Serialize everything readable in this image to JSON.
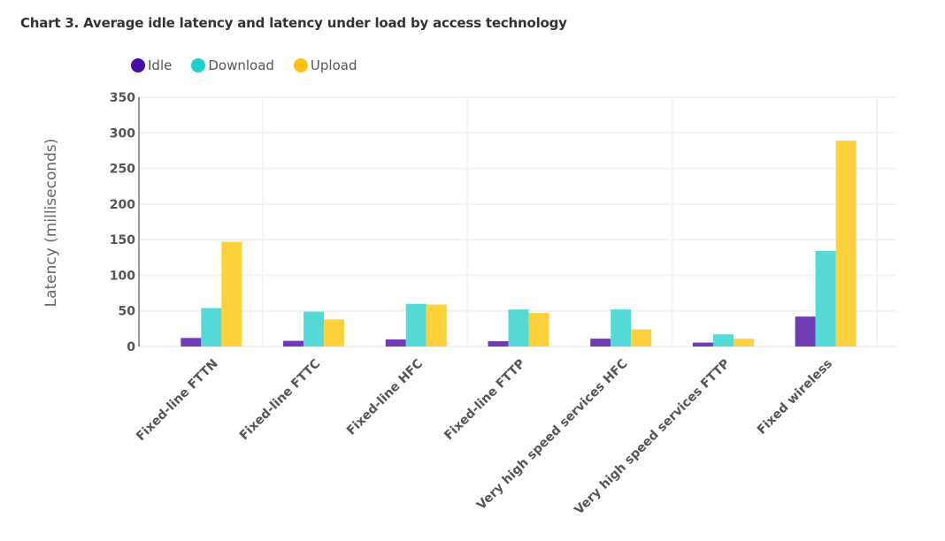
{
  "chart_data": {
    "type": "bar",
    "title": "Chart 3. Average idle latency and latency under load by access technology",
    "xlabel": "",
    "ylabel": "Latency (milliseconds)",
    "ylim": [
      0,
      350
    ],
    "yticks": [
      0,
      50,
      100,
      150,
      200,
      250,
      300,
      350
    ],
    "grid": true,
    "legend_position": "top-left",
    "categories": [
      "Fixed-line FTTN",
      "Fixed-line FTTC",
      "Fixed-line HFC",
      "Fixed-line FTTP",
      "Very high speed services HFC",
      "Very high speed services FTTP",
      "Fixed wireless"
    ],
    "series": [
      {
        "name": "Idle",
        "color": "#6f3cb5",
        "legend_color": "#4a0ca8",
        "values": [
          12,
          8,
          10,
          7.5,
          11,
          5.5,
          42
        ]
      },
      {
        "name": "Download",
        "color": "#55d9d6",
        "legend_color": "#1fcfcb",
        "values": [
          54,
          49,
          60,
          52,
          52,
          17,
          134
        ]
      },
      {
        "name": "Upload",
        "color": "#fdd13c",
        "legend_color": "#ffc20e",
        "values": [
          147,
          38,
          59,
          47,
          24,
          11,
          289
        ]
      }
    ]
  }
}
